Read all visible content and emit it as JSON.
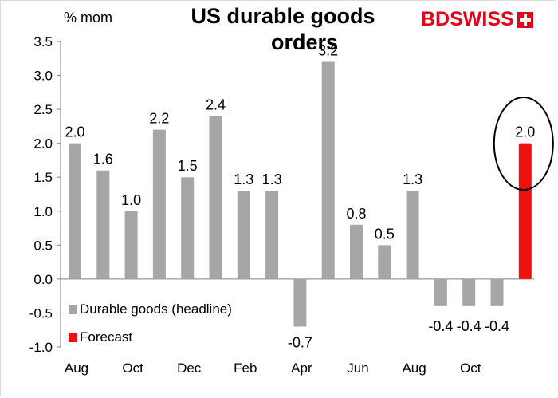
{
  "header": {
    "title_line1": "US durable goods",
    "title_line2": "orders",
    "unit_label": "% mom",
    "logo_text": "BDSWISS"
  },
  "colors": {
    "primary_bar": "#a6a6a6",
    "forecast_bar": "#ee1111",
    "brand": "#e3001b"
  },
  "legend": [
    {
      "label": "Durable goods (headline)",
      "color": "#a6a6a6"
    },
    {
      "label": "Forecast",
      "color": "#ee1111"
    }
  ],
  "chart_data": {
    "type": "bar",
    "title": "US durable goods orders",
    "ylabel": "% mom",
    "ylim": [
      -1.0,
      3.5
    ],
    "yticks": [
      3.5,
      3.0,
      2.5,
      2.0,
      1.5,
      1.0,
      0.5,
      0.0,
      -0.5,
      -1.0
    ],
    "ytick_labels": [
      "3.5",
      "3.0",
      "2.5",
      "2.0",
      "1.5",
      "1.0",
      "0.5",
      "0.0",
      "-0.5",
      "-1.0"
    ],
    "xtick_labels": [
      "Aug",
      "Oct",
      "Dec",
      "Feb",
      "Apr",
      "Jun",
      "Aug",
      "Oct"
    ],
    "xtick_positions": [
      0,
      2,
      4,
      6,
      8,
      10,
      12,
      14
    ],
    "grid": false,
    "series": [
      {
        "name": "Durable goods (headline)",
        "values": [
          2.0,
          1.6,
          1.0,
          2.2,
          1.5,
          2.4,
          1.3,
          1.3,
          -0.7,
          3.2,
          0.8,
          0.5,
          1.3,
          -0.4,
          -0.4,
          -0.4,
          null
        ],
        "labels": [
          "2.0",
          "1.6",
          "1.0",
          "2.2",
          "1.5",
          "2.4",
          "1.3",
          "1.3",
          "-0.7",
          "3.2",
          "0.8",
          "0.5",
          "1.3",
          "-0.4",
          "-0.4",
          "-0.4",
          ""
        ]
      },
      {
        "name": "Forecast",
        "values": [
          null,
          null,
          null,
          null,
          null,
          null,
          null,
          null,
          null,
          null,
          null,
          null,
          null,
          null,
          null,
          null,
          2.0
        ],
        "labels": [
          "",
          "",
          "",
          "",
          "",
          "",
          "",
          "",
          "",
          "",
          "",
          "",
          "",
          "",
          "",
          "",
          "2.0"
        ]
      }
    ],
    "annotation": "circle around forecast bar"
  }
}
